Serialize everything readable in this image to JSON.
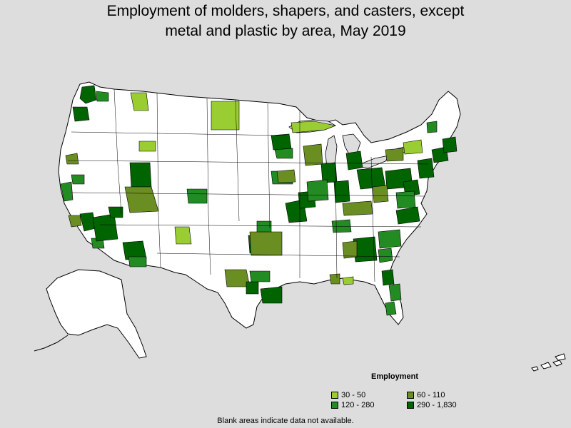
{
  "title": {
    "line1": "Employment of molders, shapers, and casters, except",
    "line2": "metal and plastic by area, May 2019"
  },
  "legend": {
    "title": "Employment",
    "items": [
      {
        "label": "30 - 50",
        "color": "#9acd32"
      },
      {
        "label": "60 - 110",
        "color": "#6b8e23"
      },
      {
        "label": "120 - 280",
        "color": "#228b22"
      },
      {
        "label": "290 - 1,830",
        "color": "#006400"
      }
    ]
  },
  "footnote": "Blank areas indicate data not available.",
  "colors": {
    "background": "#dddddd",
    "land": "#ffffff",
    "border": "#000000"
  }
}
